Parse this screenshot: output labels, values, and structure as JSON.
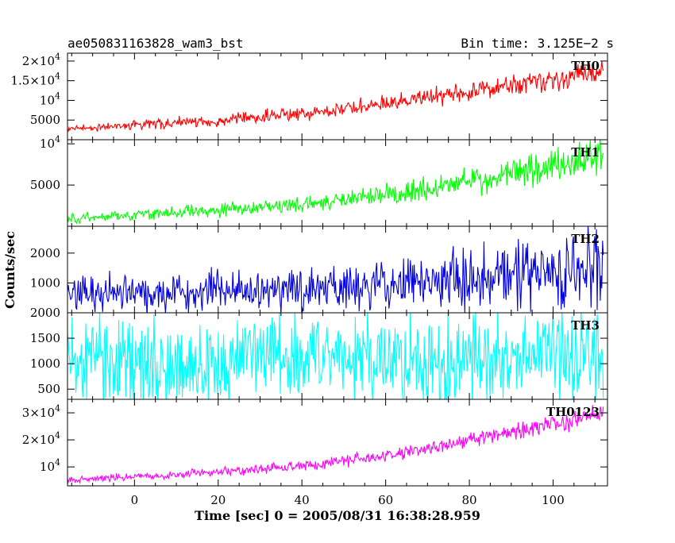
{
  "header": {
    "obs_id": "ae050831163828_wam3_bst",
    "bin_time": "Bin time: 3.125E−2 s"
  },
  "axes": {
    "ylabel": "Counts/sec",
    "xlabel": "Time [sec] 0 = 2005/08/31 16:38:28.959"
  },
  "chart_data": {
    "type": "line",
    "x_range": [
      -16,
      113
    ],
    "data_x_range": [
      -16,
      112
    ],
    "x_ticks": [
      0,
      20,
      40,
      60,
      80,
      100
    ],
    "bin_time_s": 0.03125,
    "panels": [
      {
        "name": "TH0",
        "color": "#ff0000",
        "ylim": [
          0,
          22000
        ],
        "y_ticks": [
          {
            "value": 5000,
            "label": "5000"
          },
          {
            "value": 10000,
            "label": "10",
            "exp": "4"
          },
          {
            "value": 15000,
            "label": "1.5×10",
            "exp": "4"
          },
          {
            "value": 20000,
            "label": "2×10",
            "exp": "4"
          }
        ],
        "trend": {
          "x": [
            -16,
            0,
            20,
            40,
            60,
            80,
            100,
            112
          ],
          "y": [
            2800,
            3700,
            4900,
            6400,
            9200,
            12300,
            15300,
            17800
          ]
        },
        "spread": [
          1200,
          1600,
          1900,
          2200,
          2600,
          3200,
          3700,
          4000
        ]
      },
      {
        "name": "TH1",
        "color": "#00ff00",
        "ylim": [
          0,
          10500
        ],
        "y_ticks": [
          {
            "value": 5000,
            "label": "5000"
          },
          {
            "value": 10000,
            "label": "10",
            "exp": "4"
          }
        ],
        "trend": {
          "x": [
            -16,
            0,
            20,
            40,
            60,
            80,
            100,
            112
          ],
          "y": [
            900,
            1350,
            2000,
            2600,
            3700,
            5300,
            7400,
            8800
          ]
        },
        "spread": [
          700,
          900,
          1100,
          1300,
          1700,
          2100,
          2500,
          2800
        ]
      },
      {
        "name": "TH2",
        "color": "#0000e0",
        "ylim": [
          0,
          2900
        ],
        "y_ticks": [
          {
            "value": 1000,
            "label": "1000"
          },
          {
            "value": 2000,
            "label": "2000"
          }
        ],
        "trend": {
          "x": [
            -16,
            0,
            20,
            40,
            60,
            80,
            100,
            112
          ],
          "y": [
            620,
            650,
            720,
            800,
            980,
            1150,
            1420,
            1600
          ]
        },
        "spread": [
          800,
          850,
          900,
          950,
          1100,
          1300,
          1600,
          1800
        ]
      },
      {
        "name": "TH3",
        "color": "#00ffff",
        "ylim": [
          300,
          2000
        ],
        "y_ticks": [
          {
            "value": 500,
            "label": "500"
          },
          {
            "value": 1000,
            "label": "1000"
          },
          {
            "value": 1500,
            "label": "1500"
          },
          {
            "value": 2000,
            "label": "2000"
          }
        ],
        "trend": {
          "x": [
            -16,
            112
          ],
          "y": [
            1100,
            1100
          ]
        },
        "spread": [
          1200,
          1200
        ]
      },
      {
        "name": "TH0123",
        "color": "#ff00ff",
        "ylim": [
          3000,
          35000
        ],
        "y_ticks": [
          {
            "value": 10000,
            "label": "10",
            "exp": "4"
          },
          {
            "value": 20000,
            "label": "2×10",
            "exp": "4"
          },
          {
            "value": 30000,
            "label": "3×10",
            "exp": "4"
          }
        ],
        "trend": {
          "x": [
            -16,
            0,
            20,
            40,
            60,
            80,
            100,
            112
          ],
          "y": [
            5100,
            6400,
            8300,
            10200,
            14200,
            19700,
            25800,
            30300
          ]
        },
        "spread": [
          1500,
          1800,
          2200,
          2600,
          3200,
          4000,
          4600,
          5000
        ]
      }
    ]
  }
}
